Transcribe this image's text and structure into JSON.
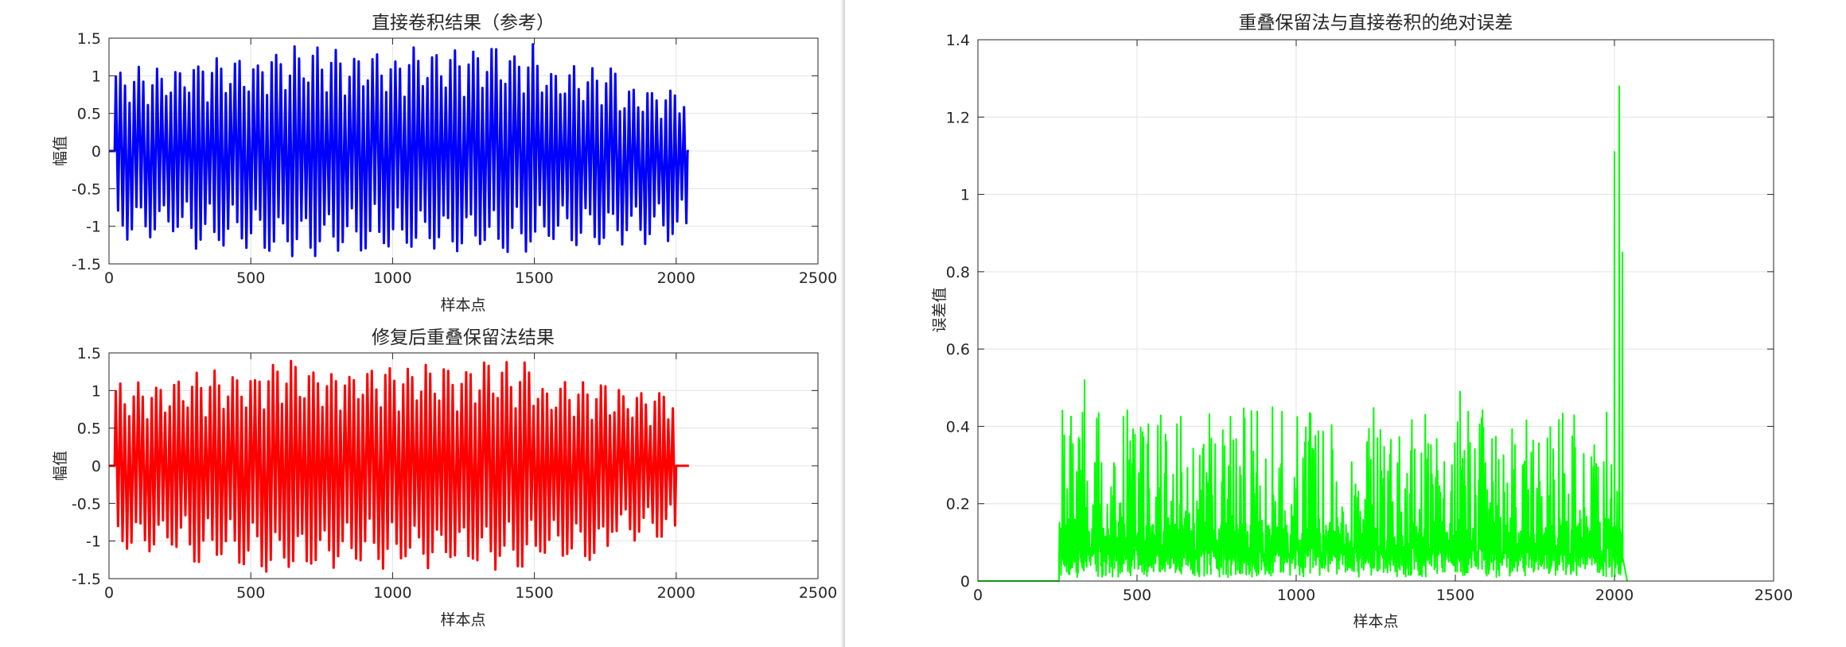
{
  "figures": {
    "ref": {
      "title": "直接卷积结果（参考）",
      "xlabel": "样本点",
      "ylabel": "幅值"
    },
    "ola": {
      "title": "修复后重叠保留法结果",
      "xlabel": "样本点",
      "ylabel": "幅值"
    },
    "err": {
      "title": "重叠保留法与直接卷积的绝对误差",
      "xlabel": "样本点",
      "ylabel": "误差值"
    }
  },
  "chart_data": [
    {
      "type": "line",
      "title": "直接卷积结果（参考）",
      "xlabel": "样本点",
      "ylabel": "幅值",
      "xlim": [
        0,
        2500
      ],
      "ylim": [
        -1.5,
        1.5
      ],
      "xticks": [
        "0",
        "500",
        "1000",
        "1500",
        "2000",
        "2500"
      ],
      "yticks": [
        "-1.5",
        "-1",
        "-0.5",
        "0",
        "0.5",
        "1",
        "1.5"
      ],
      "grid": true,
      "color": "#0000ff",
      "signal": {
        "zero_until": 20,
        "end": 2040,
        "tail_end": 2045,
        "peaks_max": [
          1.15,
          1.28,
          1.42,
          1.35,
          1.4,
          1.42,
          1.15,
          0.85
        ],
        "troughs_min": [
          -1.2,
          -1.35,
          -1.45,
          -1.4,
          -1.38,
          -1.4,
          -1.3,
          -1.25
        ],
        "approx_cycles": 125
      }
    },
    {
      "type": "line",
      "title": "修复后重叠保留法结果",
      "xlabel": "样本点",
      "ylabel": "幅值",
      "xlim": [
        0,
        2500
      ],
      "ylim": [
        -1.5,
        1.5
      ],
      "xticks": [
        "0",
        "500",
        "1000",
        "1500",
        "2000",
        "2500"
      ],
      "yticks": [
        "-1.5",
        "-1",
        "-0.5",
        "0",
        "0.5",
        "1",
        "1.5"
      ],
      "grid": true,
      "color": "#ff0000",
      "signal": {
        "zero_until": 20,
        "end": 2000,
        "tail_end": 2045,
        "peaks_max": [
          1.15,
          1.28,
          1.42,
          1.35,
          1.4,
          1.42,
          1.15,
          1.05
        ],
        "troughs_min": [
          -1.2,
          -1.35,
          -1.45,
          -1.4,
          -1.38,
          -1.4,
          -1.3,
          -1.0
        ],
        "approx_cycles": 125
      }
    },
    {
      "type": "line",
      "title": "重叠保留法与直接卷积的绝对误差",
      "xlabel": "样本点",
      "ylabel": "误差值",
      "xlim": [
        0,
        2500
      ],
      "ylim": [
        0,
        1.4
      ],
      "xticks": [
        "0",
        "500",
        "1000",
        "1500",
        "2000",
        "2500"
      ],
      "yticks": [
        "0",
        "0.2",
        "0.4",
        "0.6",
        "0.8",
        "1",
        "1.2",
        "1.4"
      ],
      "grid": true,
      "color": "#00ff00",
      "signal": {
        "zero_until": 255,
        "end": 2020,
        "tail_end": 2040,
        "typical_max": 0.45,
        "spikes": [
          [
            335,
            0.52
          ],
          [
            1515,
            0.49
          ],
          [
            2000,
            1.11
          ],
          [
            2015,
            1.28
          ],
          [
            2025,
            0.85
          ]
        ]
      }
    }
  ]
}
